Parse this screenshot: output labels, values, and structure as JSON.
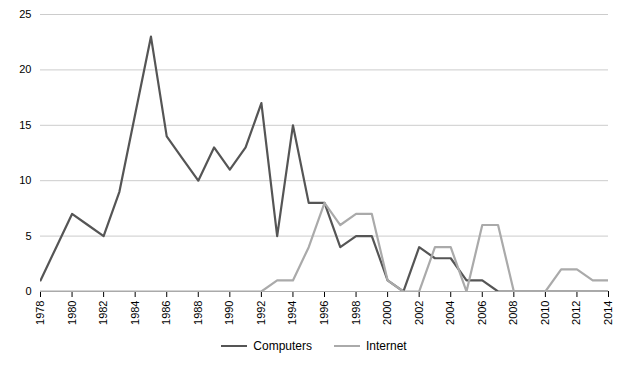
{
  "chart_data": {
    "type": "line",
    "x": [
      1978,
      1979,
      1980,
      1981,
      1982,
      1983,
      1984,
      1985,
      1986,
      1987,
      1988,
      1989,
      1990,
      1991,
      1992,
      1993,
      1994,
      1995,
      1996,
      1997,
      1998,
      1999,
      2000,
      2001,
      2002,
      2003,
      2004,
      2005,
      2006,
      2007,
      2008,
      2009,
      2010,
      2011,
      2012,
      2013,
      2014
    ],
    "series": [
      {
        "name": "Computers",
        "color": "#555555",
        "values": [
          1,
          4,
          7,
          6,
          5,
          9,
          16,
          23,
          14,
          12,
          10,
          13,
          11,
          13,
          17,
          5,
          15,
          8,
          8,
          4,
          5,
          5,
          1,
          0,
          4,
          3,
          3,
          1,
          1,
          0,
          0,
          0,
          0,
          0,
          0,
          0,
          0
        ]
      },
      {
        "name": "Internet",
        "color": "#aaaaaa",
        "values": [
          0,
          0,
          0,
          0,
          0,
          0,
          0,
          0,
          0,
          0,
          0,
          0,
          0,
          0,
          0,
          1,
          1,
          4,
          8,
          6,
          7,
          7,
          1,
          0,
          0,
          4,
          4,
          0,
          6,
          6,
          0,
          0,
          0,
          2,
          2,
          1,
          1
        ]
      }
    ],
    "xlim": [
      1978,
      2014
    ],
    "xticks": [
      1978,
      1980,
      1982,
      1984,
      1986,
      1988,
      1990,
      1992,
      1994,
      1996,
      1998,
      2000,
      2002,
      2004,
      2006,
      2008,
      2010,
      2012,
      2014
    ],
    "ylim": [
      0,
      25
    ],
    "yticks": [
      0,
      5,
      10,
      15,
      20,
      25
    ],
    "grid": "y",
    "legend": "bottom"
  }
}
